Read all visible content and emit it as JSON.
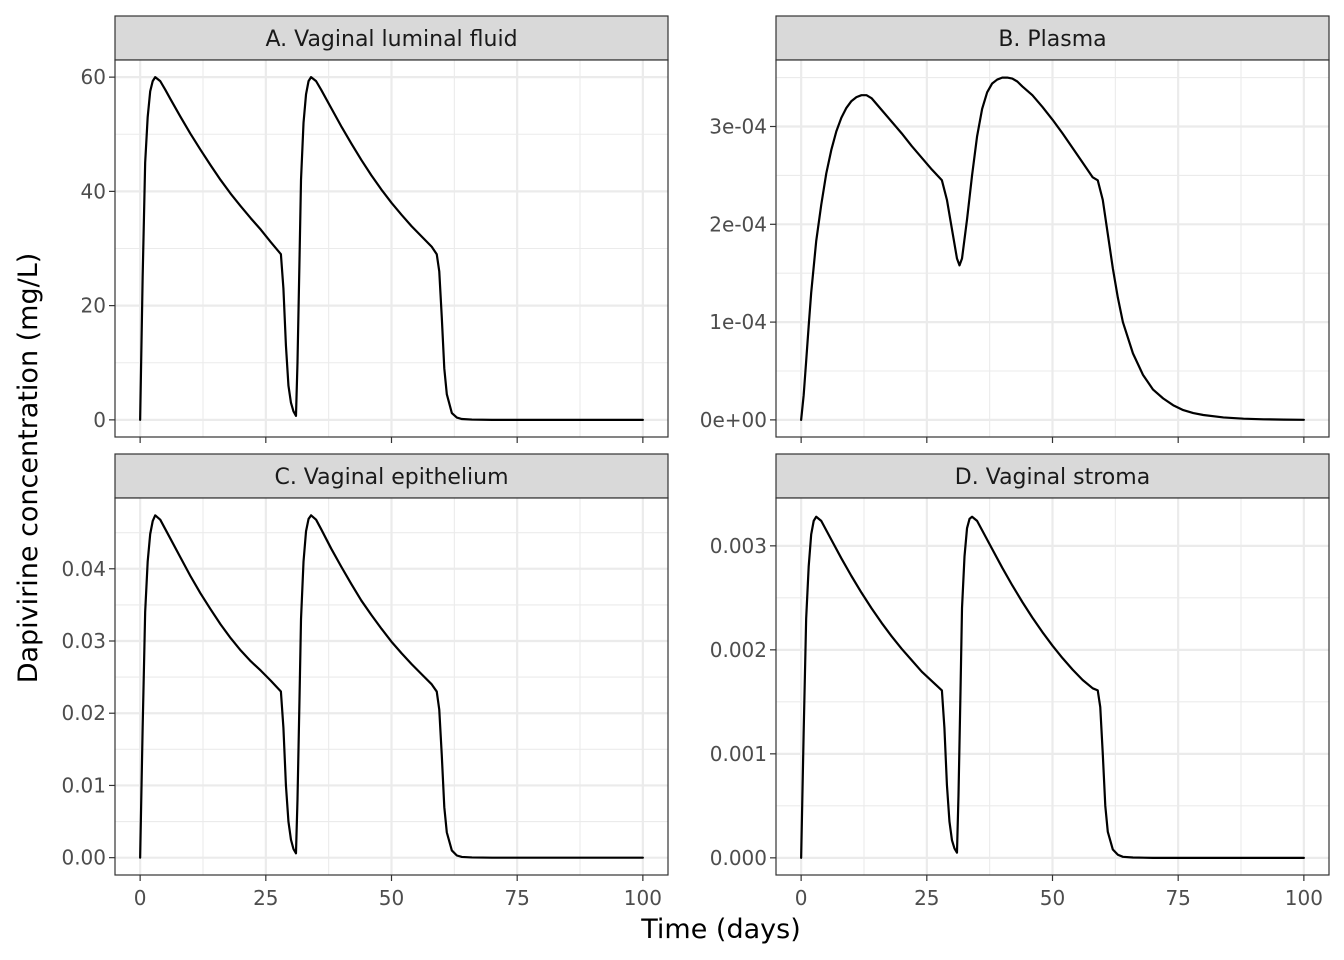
{
  "figure": {
    "xlabel": "Time (days)",
    "ylabel": "Dapivirine concentration (mg/L)"
  },
  "chart_data": [
    {
      "type": "line",
      "title": "A. Vaginal luminal fluid",
      "xlim": [
        -5,
        105
      ],
      "ylim": [
        -3,
        63
      ],
      "x_ticks": [
        0,
        25,
        50,
        75,
        100
      ],
      "x_tick_labels": [
        "0",
        "25",
        "50",
        "75",
        "100"
      ],
      "y_ticks": [
        0,
        20,
        40,
        60
      ],
      "y_tick_labels": [
        "0",
        "20",
        "40",
        "60"
      ],
      "show_x_tick_labels": false,
      "series": [
        {
          "x": [
            0,
            0.5,
            1,
            1.5,
            2,
            2.5,
            3,
            4,
            5,
            6,
            8,
            10,
            12,
            14,
            16,
            18,
            20,
            22,
            24,
            26,
            28,
            28.5,
            29,
            29.5,
            30,
            30.5,
            31,
            31.3,
            31.7,
            32,
            32.5,
            33,
            33.5,
            34,
            35,
            36,
            38,
            40,
            42,
            44,
            46,
            48,
            50,
            52,
            54,
            56,
            58,
            59,
            59.5,
            60,
            60.5,
            61,
            62,
            63,
            64,
            66,
            70,
            80,
            90,
            100
          ],
          "y": [
            0,
            25,
            45,
            53,
            57.5,
            59.3,
            60,
            59.3,
            57.8,
            56.2,
            53.1,
            50.1,
            47.3,
            44.6,
            42,
            39.6,
            37.4,
            35.3,
            33.3,
            31.1,
            29,
            23,
            13,
            6,
            3,
            1.5,
            0.7,
            10,
            28,
            42,
            52,
            57,
            59.3,
            60,
            59.3,
            57.8,
            54.6,
            51.4,
            48.4,
            45.5,
            42.8,
            40.3,
            38,
            35.9,
            33.9,
            32.1,
            30.3,
            29,
            26,
            18,
            9,
            4.5,
            1.2,
            0.4,
            0.15,
            0.05,
            0,
            0,
            0,
            0
          ],
          "color": "#000000"
        }
      ]
    },
    {
      "type": "line",
      "title": "B. Plasma",
      "xlim": [
        -5,
        105
      ],
      "ylim": [
        -1.75e-05,
        0.000368
      ],
      "x_ticks": [
        0,
        25,
        50,
        75,
        100
      ],
      "x_tick_labels": [
        "0",
        "25",
        "50",
        "75",
        "100"
      ],
      "y_ticks": [
        0,
        0.0001,
        0.0002,
        0.0003
      ],
      "y_tick_labels": [
        "0e+00",
        "1e-04",
        "2e-04",
        "3e-04"
      ],
      "show_x_tick_labels": false,
      "series": [
        {
          "x": [
            0,
            0.5,
            1,
            1.5,
            2,
            3,
            4,
            5,
            6,
            7,
            8,
            9,
            10,
            11,
            12,
            13,
            14,
            15,
            16,
            18,
            20,
            22,
            24,
            26,
            28,
            29,
            30,
            31,
            31.5,
            32,
            33,
            34,
            35,
            36,
            37,
            38,
            39,
            40,
            41,
            42,
            43,
            44,
            46,
            48,
            50,
            52,
            54,
            56,
            58,
            59,
            60,
            61,
            62,
            63,
            64,
            66,
            68,
            70,
            72,
            74,
            76,
            78,
            80,
            84,
            88,
            92,
            96,
            100
          ],
          "y": [
            0,
            2.5e-05,
            6e-05,
            9.6e-05,
            0.00013,
            0.000183,
            0.00022,
            0.000252,
            0.000276,
            0.000295,
            0.000309,
            0.000319,
            0.000326,
            0.00033,
            0.000332,
            0.000332,
            0.000329,
            0.000323,
            0.000317,
            0.000305,
            0.000293,
            0.00028,
            0.000268,
            0.000256,
            0.000245,
            0.000225,
            0.000195,
            0.000165,
            0.000158,
            0.000165,
            0.000205,
            0.00025,
            0.00029,
            0.000318,
            0.000335,
            0.000344,
            0.000348,
            0.00035,
            0.00035,
            0.000349,
            0.000346,
            0.000341,
            0.000332,
            0.00032,
            0.000307,
            0.000293,
            0.000278,
            0.000263,
            0.000248,
            0.000245,
            0.000225,
            0.00019,
            0.000155,
            0.000125,
            0.0001,
            6.8e-05,
            4.6e-05,
            3.1e-05,
            2.2e-05,
            1.5e-05,
            1e-05,
            7e-06,
            5e-06,
            2.5e-06,
            1.2e-06,
            6e-07,
            3e-07,
            1e-07
          ],
          "color": "#000000"
        }
      ]
    },
    {
      "type": "line",
      "title": "C. Vaginal epithelium",
      "xlim": [
        -5,
        105
      ],
      "ylim": [
        -0.0024,
        0.0498
      ],
      "x_ticks": [
        0,
        25,
        50,
        75,
        100
      ],
      "x_tick_labels": [
        "0",
        "25",
        "50",
        "75",
        "100"
      ],
      "y_ticks": [
        0,
        0.01,
        0.02,
        0.03,
        0.04
      ],
      "y_tick_labels": [
        "0.00",
        "0.01",
        "0.02",
        "0.03",
        "0.04"
      ],
      "show_x_tick_labels": true,
      "series": [
        {
          "x": [
            0,
            0.5,
            1,
            1.5,
            2,
            2.5,
            3,
            4,
            5,
            6,
            8,
            10,
            12,
            14,
            16,
            18,
            20,
            22,
            24,
            26,
            28,
            28.5,
            29,
            29.5,
            30,
            30.5,
            31,
            31.3,
            31.7,
            32,
            32.5,
            33,
            33.5,
            34,
            35,
            36,
            38,
            40,
            42,
            44,
            46,
            48,
            50,
            52,
            54,
            56,
            58,
            59,
            59.5,
            60,
            60.5,
            61,
            62,
            63,
            64,
            66,
            70,
            80,
            90,
            100
          ],
          "y": [
            0,
            0.018,
            0.034,
            0.041,
            0.0448,
            0.0466,
            0.0474,
            0.0468,
            0.0455,
            0.0442,
            0.0416,
            0.039,
            0.0366,
            0.0344,
            0.0323,
            0.0304,
            0.0287,
            0.0272,
            0.0259,
            0.0245,
            0.023,
            0.018,
            0.01,
            0.005,
            0.0025,
            0.0012,
            0.0006,
            0.008,
            0.022,
            0.033,
            0.041,
            0.0452,
            0.0469,
            0.0474,
            0.0468,
            0.0455,
            0.0428,
            0.0403,
            0.0379,
            0.0356,
            0.0336,
            0.0317,
            0.0299,
            0.0283,
            0.0268,
            0.0254,
            0.024,
            0.023,
            0.0205,
            0.0142,
            0.007,
            0.0035,
            0.001,
            0.0003,
            0.0001,
            3e-05,
            0,
            0,
            0,
            0
          ],
          "color": "#000000"
        }
      ]
    },
    {
      "type": "line",
      "title": "D. Vaginal stroma",
      "xlim": [
        -5,
        105
      ],
      "ylim": [
        -0.000165,
        0.00346
      ],
      "x_ticks": [
        0,
        25,
        50,
        75,
        100
      ],
      "x_tick_labels": [
        "0",
        "25",
        "50",
        "75",
        "100"
      ],
      "y_ticks": [
        0,
        0.001,
        0.002,
        0.003
      ],
      "y_tick_labels": [
        "0.000",
        "0.001",
        "0.002",
        "0.003"
      ],
      "show_x_tick_labels": true,
      "series": [
        {
          "x": [
            0,
            0.5,
            1,
            1.5,
            2,
            2.5,
            3,
            4,
            5,
            6,
            8,
            10,
            12,
            14,
            16,
            18,
            20,
            22,
            24,
            26,
            28,
            28.5,
            29,
            29.5,
            30,
            30.5,
            31,
            31.3,
            31.7,
            32,
            32.5,
            33,
            33.5,
            34,
            35,
            36,
            38,
            40,
            42,
            44,
            46,
            48,
            50,
            52,
            54,
            56,
            58,
            59,
            59.5,
            60,
            60.5,
            61,
            62,
            63,
            64,
            66,
            70,
            80,
            90,
            100
          ],
          "y": [
            0,
            0.0012,
            0.0023,
            0.0028,
            0.00311,
            0.00324,
            0.00328,
            0.00324,
            0.00315,
            0.00306,
            0.00288,
            0.00271,
            0.00255,
            0.0024,
            0.00226,
            0.00213,
            0.00201,
            0.0019,
            0.00179,
            0.0017,
            0.00161,
            0.00125,
            0.0007,
            0.00035,
            0.00017,
            9e-05,
            5e-05,
            0.0006,
            0.0016,
            0.0024,
            0.0029,
            0.00317,
            0.00326,
            0.00328,
            0.00324,
            0.00315,
            0.00297,
            0.00279,
            0.00262,
            0.00246,
            0.00231,
            0.00217,
            0.00204,
            0.00192,
            0.00181,
            0.00171,
            0.00163,
            0.00161,
            0.00145,
            0.001,
            0.0005,
            0.00025,
            8e-05,
            3e-05,
            1e-05,
            3e-06,
            0,
            0,
            0,
            0
          ],
          "color": "#000000"
        }
      ]
    }
  ]
}
